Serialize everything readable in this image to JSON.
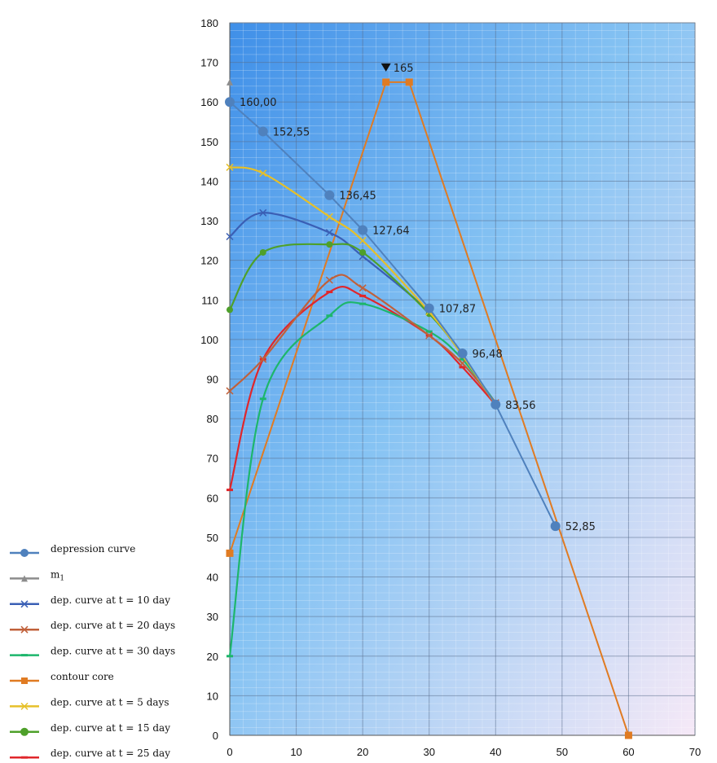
{
  "chart_data": {
    "type": "line",
    "title": "",
    "xlabel": "",
    "ylabel": "",
    "xlim": [
      0,
      70
    ],
    "ylim": [
      0,
      180
    ],
    "x_ticks": [
      0,
      10,
      20,
      30,
      40,
      50,
      60,
      70
    ],
    "y_ticks": [
      0,
      10,
      20,
      30,
      40,
      50,
      60,
      70,
      80,
      90,
      100,
      110,
      120,
      130,
      140,
      150,
      160,
      170,
      180
    ],
    "grid": true,
    "legend_position": "left",
    "series": [
      {
        "name": "depression curve",
        "color": "#4f81bd",
        "marker": "circle",
        "smooth": false,
        "points": [
          [
            0,
            160.0
          ],
          [
            5,
            152.55
          ],
          [
            15,
            136.45
          ],
          [
            20,
            127.64
          ],
          [
            30,
            107.87
          ],
          [
            35,
            96.48
          ],
          [
            40,
            83.56
          ],
          [
            49,
            52.85
          ]
        ],
        "labels": [
          "160,00",
          "152,55",
          "136,45",
          "127,64",
          "107,87",
          "96,48",
          "83,56",
          "52,85"
        ]
      },
      {
        "name": "m1",
        "color": "#8c8c8c",
        "marker": "triangle",
        "smooth": false,
        "points": [
          [
            0,
            165
          ]
        ]
      },
      {
        "name": "dep. curve at t = 10 day",
        "color": "#3a5fb5",
        "marker": "x",
        "smooth": true,
        "points": [
          [
            0,
            126
          ],
          [
            5,
            132
          ],
          [
            15,
            127
          ],
          [
            20,
            121
          ],
          [
            30,
            107
          ],
          [
            35,
            96
          ],
          [
            40,
            83.5
          ]
        ]
      },
      {
        "name": "dep. curve at t = 20 days",
        "color": "#c0603a",
        "marker": "x",
        "smooth": true,
        "points": [
          [
            0,
            87
          ],
          [
            5,
            95
          ],
          [
            15,
            115
          ],
          [
            20,
            113
          ],
          [
            30,
            101
          ],
          [
            35,
            94
          ],
          [
            40,
            84
          ]
        ]
      },
      {
        "name": "dep. curve at t = 30 days",
        "color": "#1db66c",
        "marker": "dash",
        "smooth": true,
        "points": [
          [
            0,
            20
          ],
          [
            5,
            85
          ],
          [
            15,
            106
          ],
          [
            20,
            109
          ],
          [
            30,
            102
          ],
          [
            35,
            95
          ],
          [
            40,
            84
          ]
        ]
      },
      {
        "name": "contour core",
        "color": "#e07b22",
        "marker": "square",
        "smooth": false,
        "points": [
          [
            0,
            46
          ],
          [
            23.5,
            165
          ],
          [
            27,
            165
          ],
          [
            60,
            0
          ]
        ]
      },
      {
        "name": "dep. curve at t = 5 days",
        "color": "#e6c029",
        "marker": "x",
        "smooth": true,
        "points": [
          [
            0,
            143.5
          ],
          [
            5,
            142
          ],
          [
            15,
            131
          ],
          [
            20,
            125
          ],
          [
            30,
            107
          ],
          [
            35,
            96
          ],
          [
            40,
            83.5
          ]
        ]
      },
      {
        "name": "dep. curve at t = 15 day",
        "color": "#4ea02a",
        "marker": "circle",
        "smooth": true,
        "points": [
          [
            0,
            107.5
          ],
          [
            5,
            122
          ],
          [
            15,
            124
          ],
          [
            20,
            122
          ],
          [
            30,
            106.5
          ],
          [
            35,
            96
          ],
          [
            40,
            83.5
          ]
        ]
      },
      {
        "name": "dep. curve at t = 25 day",
        "color": "#e0262b",
        "marker": "dash",
        "smooth": true,
        "points": [
          [
            0,
            62
          ],
          [
            5,
            95
          ],
          [
            15,
            112
          ],
          [
            20,
            111
          ],
          [
            30,
            101
          ],
          [
            35,
            93
          ],
          [
            40,
            83.5
          ]
        ]
      }
    ],
    "annotations": [
      {
        "text": "165",
        "x": 23.5,
        "y": 165,
        "symbol": "down-triangle"
      }
    ]
  }
}
